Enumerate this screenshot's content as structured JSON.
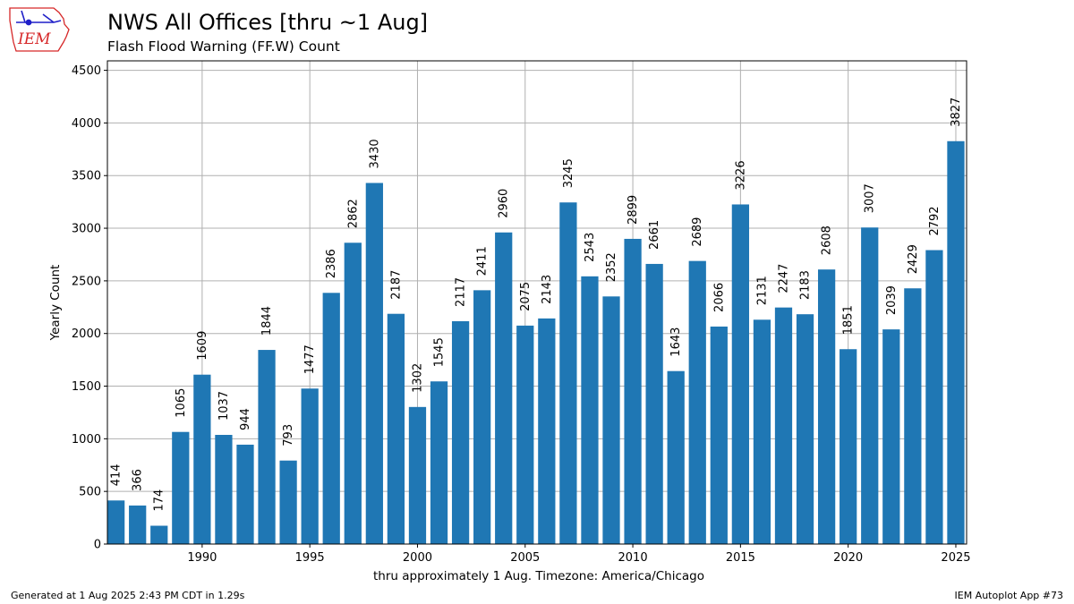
{
  "header": {
    "title": "NWS All Offices [thru ~1 Aug]",
    "subtitle": "Flash Flood Warning (FF.W) Count",
    "logo_text": "IEM"
  },
  "footer": {
    "generated": "Generated at 1 Aug 2025 2:43 PM CDT in 1.29s",
    "app": "IEM Autoplot App #73"
  },
  "colors": {
    "bar": "#1f77b4",
    "grid": "#b0b0b0",
    "logo_red": "#d62728",
    "logo_blue": "#1f1fc8"
  },
  "chart_data": {
    "type": "bar",
    "title": "NWS All Offices [thru ~1 Aug]",
    "subtitle": "Flash Flood Warning (FF.W) Count",
    "xlabel": "thru approximately 1 Aug. Timezone: America/Chicago",
    "ylabel": "Yearly Count",
    "x": [
      1986,
      1987,
      1988,
      1989,
      1990,
      1991,
      1992,
      1993,
      1994,
      1995,
      1996,
      1997,
      1998,
      1999,
      2000,
      2001,
      2002,
      2003,
      2004,
      2005,
      2006,
      2007,
      2008,
      2009,
      2010,
      2011,
      2012,
      2013,
      2014,
      2015,
      2016,
      2017,
      2018,
      2019,
      2020,
      2021,
      2022,
      2023,
      2024,
      2025
    ],
    "values": [
      414,
      366,
      174,
      1065,
      1609,
      1037,
      944,
      1844,
      793,
      1477,
      2386,
      2862,
      3430,
      2187,
      1302,
      1545,
      2117,
      2411,
      2960,
      2075,
      2143,
      3245,
      2543,
      2352,
      2899,
      2661,
      1643,
      2689,
      2066,
      3226,
      2131,
      2247,
      2183,
      2608,
      1851,
      3007,
      2039,
      2429,
      2792,
      3827
    ],
    "xlim": [
      1985.6,
      2025.5
    ],
    "ylim": [
      0,
      4590
    ],
    "xticks": [
      1990,
      1995,
      2000,
      2005,
      2010,
      2015,
      2020,
      2025
    ],
    "yticks": [
      0,
      500,
      1000,
      1500,
      2000,
      2500,
      3000,
      3500,
      4000,
      4500
    ],
    "grid": true,
    "legend": "none"
  }
}
